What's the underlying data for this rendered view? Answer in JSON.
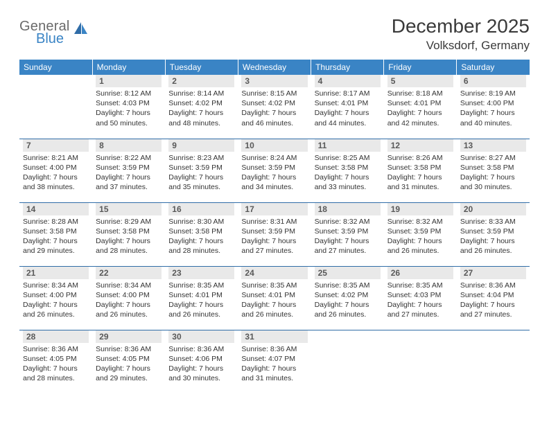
{
  "logo": {
    "word1": "General",
    "word2": "Blue",
    "color_gray": "#6a6a6a",
    "color_blue": "#3a84c5"
  },
  "title": "December 2025",
  "location": "Volksdorf, Germany",
  "header_bg": "#3a84c5",
  "header_text": "#ffffff",
  "daynum_bg": "#e9e9e9",
  "daynum_color": "#595959",
  "row_border": "#2f6ca7",
  "body_text": "#333333",
  "title_fontsize": 28,
  "location_fontsize": 17,
  "header_fontsize": 12,
  "daynum_fontsize": 12,
  "info_fontsize": 10.5,
  "weekdays": [
    "Sunday",
    "Monday",
    "Tuesday",
    "Wednesday",
    "Thursday",
    "Friday",
    "Saturday"
  ],
  "weeks": [
    [
      {
        "day": "",
        "sunrise": "",
        "sunset": "",
        "daylight": ""
      },
      {
        "day": "1",
        "sunrise": "Sunrise: 8:12 AM",
        "sunset": "Sunset: 4:03 PM",
        "daylight": "Daylight: 7 hours and 50 minutes."
      },
      {
        "day": "2",
        "sunrise": "Sunrise: 8:14 AM",
        "sunset": "Sunset: 4:02 PM",
        "daylight": "Daylight: 7 hours and 48 minutes."
      },
      {
        "day": "3",
        "sunrise": "Sunrise: 8:15 AM",
        "sunset": "Sunset: 4:02 PM",
        "daylight": "Daylight: 7 hours and 46 minutes."
      },
      {
        "day": "4",
        "sunrise": "Sunrise: 8:17 AM",
        "sunset": "Sunset: 4:01 PM",
        "daylight": "Daylight: 7 hours and 44 minutes."
      },
      {
        "day": "5",
        "sunrise": "Sunrise: 8:18 AM",
        "sunset": "Sunset: 4:01 PM",
        "daylight": "Daylight: 7 hours and 42 minutes."
      },
      {
        "day": "6",
        "sunrise": "Sunrise: 8:19 AM",
        "sunset": "Sunset: 4:00 PM",
        "daylight": "Daylight: 7 hours and 40 minutes."
      }
    ],
    [
      {
        "day": "7",
        "sunrise": "Sunrise: 8:21 AM",
        "sunset": "Sunset: 4:00 PM",
        "daylight": "Daylight: 7 hours and 38 minutes."
      },
      {
        "day": "8",
        "sunrise": "Sunrise: 8:22 AM",
        "sunset": "Sunset: 3:59 PM",
        "daylight": "Daylight: 7 hours and 37 minutes."
      },
      {
        "day": "9",
        "sunrise": "Sunrise: 8:23 AM",
        "sunset": "Sunset: 3:59 PM",
        "daylight": "Daylight: 7 hours and 35 minutes."
      },
      {
        "day": "10",
        "sunrise": "Sunrise: 8:24 AM",
        "sunset": "Sunset: 3:59 PM",
        "daylight": "Daylight: 7 hours and 34 minutes."
      },
      {
        "day": "11",
        "sunrise": "Sunrise: 8:25 AM",
        "sunset": "Sunset: 3:58 PM",
        "daylight": "Daylight: 7 hours and 33 minutes."
      },
      {
        "day": "12",
        "sunrise": "Sunrise: 8:26 AM",
        "sunset": "Sunset: 3:58 PM",
        "daylight": "Daylight: 7 hours and 31 minutes."
      },
      {
        "day": "13",
        "sunrise": "Sunrise: 8:27 AM",
        "sunset": "Sunset: 3:58 PM",
        "daylight": "Daylight: 7 hours and 30 minutes."
      }
    ],
    [
      {
        "day": "14",
        "sunrise": "Sunrise: 8:28 AM",
        "sunset": "Sunset: 3:58 PM",
        "daylight": "Daylight: 7 hours and 29 minutes."
      },
      {
        "day": "15",
        "sunrise": "Sunrise: 8:29 AM",
        "sunset": "Sunset: 3:58 PM",
        "daylight": "Daylight: 7 hours and 28 minutes."
      },
      {
        "day": "16",
        "sunrise": "Sunrise: 8:30 AM",
        "sunset": "Sunset: 3:58 PM",
        "daylight": "Daylight: 7 hours and 28 minutes."
      },
      {
        "day": "17",
        "sunrise": "Sunrise: 8:31 AM",
        "sunset": "Sunset: 3:59 PM",
        "daylight": "Daylight: 7 hours and 27 minutes."
      },
      {
        "day": "18",
        "sunrise": "Sunrise: 8:32 AM",
        "sunset": "Sunset: 3:59 PM",
        "daylight": "Daylight: 7 hours and 27 minutes."
      },
      {
        "day": "19",
        "sunrise": "Sunrise: 8:32 AM",
        "sunset": "Sunset: 3:59 PM",
        "daylight": "Daylight: 7 hours and 26 minutes."
      },
      {
        "day": "20",
        "sunrise": "Sunrise: 8:33 AM",
        "sunset": "Sunset: 3:59 PM",
        "daylight": "Daylight: 7 hours and 26 minutes."
      }
    ],
    [
      {
        "day": "21",
        "sunrise": "Sunrise: 8:34 AM",
        "sunset": "Sunset: 4:00 PM",
        "daylight": "Daylight: 7 hours and 26 minutes."
      },
      {
        "day": "22",
        "sunrise": "Sunrise: 8:34 AM",
        "sunset": "Sunset: 4:00 PM",
        "daylight": "Daylight: 7 hours and 26 minutes."
      },
      {
        "day": "23",
        "sunrise": "Sunrise: 8:35 AM",
        "sunset": "Sunset: 4:01 PM",
        "daylight": "Daylight: 7 hours and 26 minutes."
      },
      {
        "day": "24",
        "sunrise": "Sunrise: 8:35 AM",
        "sunset": "Sunset: 4:01 PM",
        "daylight": "Daylight: 7 hours and 26 minutes."
      },
      {
        "day": "25",
        "sunrise": "Sunrise: 8:35 AM",
        "sunset": "Sunset: 4:02 PM",
        "daylight": "Daylight: 7 hours and 26 minutes."
      },
      {
        "day": "26",
        "sunrise": "Sunrise: 8:35 AM",
        "sunset": "Sunset: 4:03 PM",
        "daylight": "Daylight: 7 hours and 27 minutes."
      },
      {
        "day": "27",
        "sunrise": "Sunrise: 8:36 AM",
        "sunset": "Sunset: 4:04 PM",
        "daylight": "Daylight: 7 hours and 27 minutes."
      }
    ],
    [
      {
        "day": "28",
        "sunrise": "Sunrise: 8:36 AM",
        "sunset": "Sunset: 4:05 PM",
        "daylight": "Daylight: 7 hours and 28 minutes."
      },
      {
        "day": "29",
        "sunrise": "Sunrise: 8:36 AM",
        "sunset": "Sunset: 4:05 PM",
        "daylight": "Daylight: 7 hours and 29 minutes."
      },
      {
        "day": "30",
        "sunrise": "Sunrise: 8:36 AM",
        "sunset": "Sunset: 4:06 PM",
        "daylight": "Daylight: 7 hours and 30 minutes."
      },
      {
        "day": "31",
        "sunrise": "Sunrise: 8:36 AM",
        "sunset": "Sunset: 4:07 PM",
        "daylight": "Daylight: 7 hours and 31 minutes."
      },
      {
        "day": "",
        "sunrise": "",
        "sunset": "",
        "daylight": ""
      },
      {
        "day": "",
        "sunrise": "",
        "sunset": "",
        "daylight": ""
      },
      {
        "day": "",
        "sunrise": "",
        "sunset": "",
        "daylight": ""
      }
    ]
  ]
}
